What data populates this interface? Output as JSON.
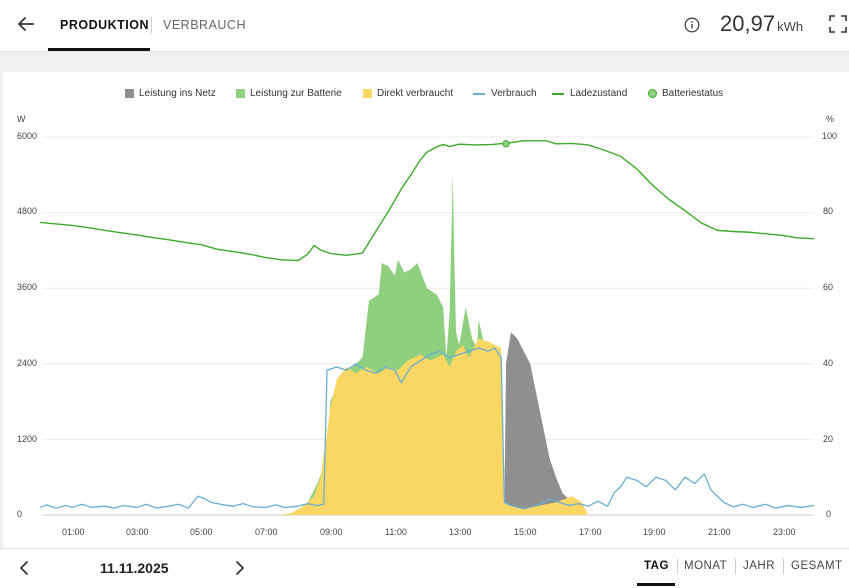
{
  "header": {
    "tabs": [
      {
        "label": "PRODUKTION",
        "active": true
      },
      {
        "label": "VERBRAUCH",
        "active": false
      }
    ],
    "energy_value": "20,97",
    "energy_unit": "kWh"
  },
  "footer": {
    "date": "11.11.2025",
    "periods": [
      "TAG",
      "MONAT",
      "JAHR",
      "GESAMT"
    ],
    "active_period": "TAG"
  },
  "colors": {
    "grid": "#8f8f8f",
    "battery": "#8fcf80",
    "direct": "#f9d762",
    "consumption": "#6aaed2",
    "soc": "#3cab2a",
    "text": "#222222"
  },
  "chart_data": {
    "type": "area",
    "legend": [
      {
        "name": "Leistung ins Netz",
        "kind": "square"
      },
      {
        "name": "Leistung zur Batterie",
        "kind": "square"
      },
      {
        "name": "Direkt verbraucht",
        "kind": "square"
      },
      {
        "name": "Verbrauch",
        "kind": "line"
      },
      {
        "name": "Ladezustand",
        "kind": "line"
      },
      {
        "name": "Batteriestatus",
        "kind": "dot"
      }
    ],
    "y_left": {
      "unit": "W",
      "ticks": [
        "0",
        "1200",
        "2400",
        "3600",
        "4800",
        "6000"
      ],
      "range": [
        0,
        6000
      ]
    },
    "y_right": {
      "unit": "%",
      "ticks": [
        "0",
        "20",
        "40",
        "60",
        "80",
        "100"
      ],
      "range": [
        0,
        100
      ]
    },
    "x": {
      "range": [
        0,
        24
      ],
      "ticks": [
        "01:00",
        "03:00",
        "05:00",
        "07:00",
        "09:00",
        "11:00",
        "13:00",
        "15:00",
        "17:00",
        "19:00",
        "21:00",
        "23:00"
      ]
    },
    "series": [
      {
        "name": "Leistung ins Netz",
        "points": [
          [
            14.4,
            0
          ],
          [
            14.45,
            2400
          ],
          [
            14.6,
            2900
          ],
          [
            14.8,
            2800
          ],
          [
            15.0,
            2600
          ],
          [
            15.2,
            2400
          ],
          [
            15.4,
            1900
          ],
          [
            15.6,
            1400
          ],
          [
            15.8,
            900
          ],
          [
            16.0,
            600
          ],
          [
            16.2,
            350
          ],
          [
            16.4,
            250
          ],
          [
            16.6,
            200
          ],
          [
            16.8,
            100
          ],
          [
            17.0,
            0
          ]
        ]
      },
      {
        "name": "Leistung zur Batterie",
        "points": [
          [
            7.8,
            0
          ],
          [
            8.3,
            200
          ],
          [
            8.6,
            500
          ],
          [
            8.9,
            900
          ],
          [
            9.0,
            1800
          ],
          [
            9.4,
            2250
          ],
          [
            9.7,
            2350
          ],
          [
            10.0,
            2500
          ],
          [
            10.2,
            3400
          ],
          [
            10.5,
            3500
          ],
          [
            10.6,
            4000
          ],
          [
            10.8,
            3950
          ],
          [
            11.0,
            3800
          ],
          [
            11.1,
            4050
          ],
          [
            11.3,
            3850
          ],
          [
            11.5,
            3900
          ],
          [
            11.7,
            4000
          ],
          [
            12.0,
            3600
          ],
          [
            12.3,
            3500
          ],
          [
            12.5,
            3300
          ],
          [
            12.6,
            2500
          ],
          [
            12.7,
            3200
          ],
          [
            12.75,
            4300
          ],
          [
            12.8,
            5400
          ],
          [
            12.85,
            4000
          ],
          [
            12.9,
            2900
          ],
          [
            13.0,
            2700
          ],
          [
            13.2,
            3300
          ],
          [
            13.4,
            2800
          ],
          [
            13.55,
            2650
          ],
          [
            13.6,
            3100
          ],
          [
            13.8,
            2650
          ],
          [
            14.0,
            2450
          ],
          [
            14.3,
            2400
          ],
          [
            14.4,
            0
          ]
        ]
      },
      {
        "name": "Direkt verbraucht",
        "points": [
          [
            7.4,
            0
          ],
          [
            7.8,
            30
          ],
          [
            8.2,
            150
          ],
          [
            8.5,
            300
          ],
          [
            8.7,
            600
          ],
          [
            8.9,
            1300
          ],
          [
            9.0,
            1700
          ],
          [
            9.2,
            2150
          ],
          [
            9.5,
            2350
          ],
          [
            9.8,
            2250
          ],
          [
            10.1,
            2350
          ],
          [
            10.5,
            2250
          ],
          [
            10.8,
            2350
          ],
          [
            11.1,
            2300
          ],
          [
            11.4,
            2450
          ],
          [
            11.8,
            2550
          ],
          [
            12.1,
            2450
          ],
          [
            12.5,
            2550
          ],
          [
            12.7,
            2350
          ],
          [
            12.9,
            2600
          ],
          [
            13.1,
            2700
          ],
          [
            13.3,
            2500
          ],
          [
            13.6,
            2800
          ],
          [
            13.9,
            2750
          ],
          [
            14.3,
            2650
          ],
          [
            14.4,
            200
          ],
          [
            14.6,
            150
          ],
          [
            15.0,
            100
          ],
          [
            15.5,
            150
          ],
          [
            16.0,
            200
          ],
          [
            16.5,
            300
          ],
          [
            16.8,
            200
          ],
          [
            17.0,
            0
          ]
        ]
      },
      {
        "name": "Verbrauch",
        "points": [
          [
            0.0,
            120
          ],
          [
            0.2,
            160
          ],
          [
            0.5,
            110
          ],
          [
            0.8,
            150
          ],
          [
            1.0,
            120
          ],
          [
            1.3,
            170
          ],
          [
            1.6,
            120
          ],
          [
            2.0,
            140
          ],
          [
            2.3,
            110
          ],
          [
            2.6,
            150
          ],
          [
            3.0,
            120
          ],
          [
            3.3,
            170
          ],
          [
            3.6,
            110
          ],
          [
            4.0,
            140
          ],
          [
            4.3,
            170
          ],
          [
            4.6,
            110
          ],
          [
            4.9,
            300
          ],
          [
            5.1,
            260
          ],
          [
            5.3,
            200
          ],
          [
            5.5,
            180
          ],
          [
            5.7,
            160
          ],
          [
            6.0,
            140
          ],
          [
            6.3,
            180
          ],
          [
            6.6,
            130
          ],
          [
            7.0,
            120
          ],
          [
            7.3,
            160
          ],
          [
            7.6,
            120
          ],
          [
            8.0,
            140
          ],
          [
            8.3,
            180
          ],
          [
            8.6,
            150
          ],
          [
            8.8,
            170
          ],
          [
            8.9,
            2300
          ],
          [
            9.2,
            2350
          ],
          [
            9.5,
            2300
          ],
          [
            9.8,
            2400
          ],
          [
            10.1,
            2300
          ],
          [
            10.4,
            2250
          ],
          [
            10.7,
            2350
          ],
          [
            11.0,
            2300
          ],
          [
            11.2,
            2100
          ],
          [
            11.5,
            2350
          ],
          [
            11.8,
            2450
          ],
          [
            12.1,
            2550
          ],
          [
            12.4,
            2600
          ],
          [
            12.7,
            2500
          ],
          [
            13.0,
            2550
          ],
          [
            13.3,
            2600
          ],
          [
            13.6,
            2650
          ],
          [
            13.9,
            2600
          ],
          [
            14.1,
            2650
          ],
          [
            14.3,
            2500
          ],
          [
            14.4,
            200
          ],
          [
            14.6,
            150
          ],
          [
            15.0,
            100
          ],
          [
            15.4,
            150
          ],
          [
            15.8,
            250
          ],
          [
            16.1,
            200
          ],
          [
            16.4,
            150
          ],
          [
            16.7,
            180
          ],
          [
            17.0,
            140
          ],
          [
            17.3,
            220
          ],
          [
            17.6,
            140
          ],
          [
            17.8,
            350
          ],
          [
            18.0,
            450
          ],
          [
            18.2,
            600
          ],
          [
            18.5,
            550
          ],
          [
            18.8,
            450
          ],
          [
            19.1,
            600
          ],
          [
            19.4,
            550
          ],
          [
            19.7,
            400
          ],
          [
            20.0,
            600
          ],
          [
            20.3,
            500
          ],
          [
            20.6,
            650
          ],
          [
            20.8,
            400
          ],
          [
            21.0,
            300
          ],
          [
            21.2,
            200
          ],
          [
            21.5,
            130
          ],
          [
            21.8,
            170
          ],
          [
            22.1,
            120
          ],
          [
            22.5,
            170
          ],
          [
            22.8,
            110
          ],
          [
            23.2,
            150
          ],
          [
            23.6,
            120
          ],
          [
            24.0,
            150
          ]
        ]
      },
      {
        "name": "Ladezustand",
        "points": [
          [
            0.0,
            77.4
          ],
          [
            0.5,
            77
          ],
          [
            1.0,
            76.6
          ],
          [
            1.5,
            76
          ],
          [
            2.0,
            75.3
          ],
          [
            2.5,
            74.7
          ],
          [
            3.0,
            74.1
          ],
          [
            3.5,
            73.4
          ],
          [
            4.0,
            72.8
          ],
          [
            4.5,
            72.1
          ],
          [
            5.0,
            71.5
          ],
          [
            5.5,
            70.3
          ],
          [
            6.0,
            69.7
          ],
          [
            6.5,
            69.0
          ],
          [
            7.0,
            68.1
          ],
          [
            7.5,
            67.5
          ],
          [
            8.0,
            67.3
          ],
          [
            8.3,
            69.0
          ],
          [
            8.5,
            71.3
          ],
          [
            8.7,
            70.1
          ],
          [
            9.0,
            69.2
          ],
          [
            9.5,
            68.7
          ],
          [
            10.0,
            69.3
          ],
          [
            10.3,
            73.5
          ],
          [
            10.8,
            80.3
          ],
          [
            11.2,
            86.2
          ],
          [
            11.5,
            90.0
          ],
          [
            11.8,
            94.0
          ],
          [
            12.0,
            96.0
          ],
          [
            12.3,
            97.4
          ],
          [
            12.5,
            98.0
          ],
          [
            12.7,
            97.5
          ],
          [
            13.0,
            98.1
          ],
          [
            13.5,
            97.9
          ],
          [
            14.0,
            98.0
          ],
          [
            14.5,
            98.4
          ],
          [
            15.0,
            99.0
          ],
          [
            15.7,
            99.0
          ],
          [
            16.0,
            98.2
          ],
          [
            16.5,
            98.3
          ],
          [
            17.0,
            97.9
          ],
          [
            17.5,
            96.5
          ],
          [
            18.0,
            94.9
          ],
          [
            18.5,
            91.6
          ],
          [
            19.0,
            87.2
          ],
          [
            19.5,
            83.5
          ],
          [
            20.0,
            80.5
          ],
          [
            20.5,
            77.3
          ],
          [
            21.0,
            75.3
          ],
          [
            21.5,
            75
          ],
          [
            22.0,
            74.8
          ],
          [
            22.5,
            74.4
          ],
          [
            23.0,
            74.0
          ],
          [
            23.5,
            73.3
          ],
          [
            24.0,
            73.1
          ]
        ]
      },
      {
        "name": "Batteriestatus",
        "points": [
          [
            14.45,
            98.2
          ]
        ]
      }
    ]
  }
}
